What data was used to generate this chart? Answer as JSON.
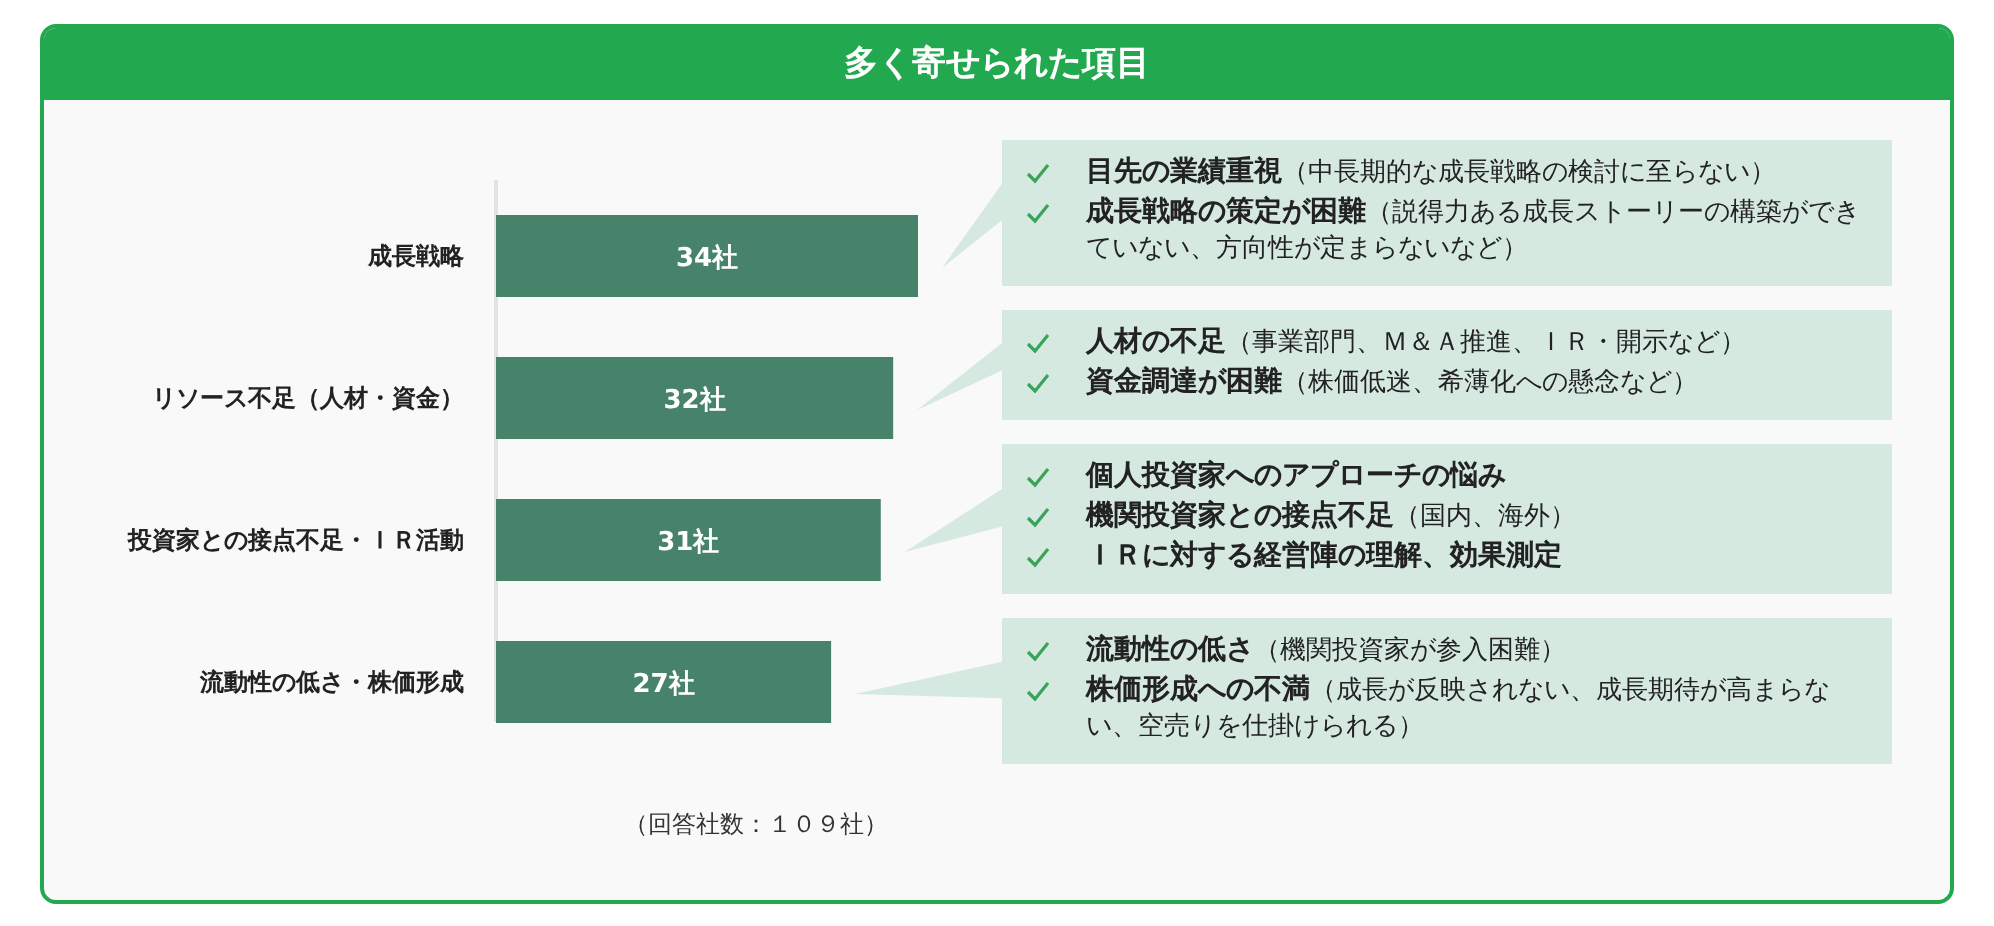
{
  "chart_data": {
    "type": "bar",
    "orientation": "horizontal",
    "title": "多く寄せられた項目",
    "categories": [
      "成長戦略",
      "リソース不足（人材・資金）",
      "投資家との接点不足・ＩＲ活動",
      "流動性の低さ・株価形成"
    ],
    "values": [
      34,
      32,
      31,
      27
    ],
    "value_labels": [
      "34社",
      "32社",
      "31社",
      "27社"
    ],
    "color": "#47826a",
    "tick_labels": "y",
    "annotations": [
      "目先の業績重視（中長期的な成長戦略の検討に至らない）",
      "成長戦略の策定が困難（説得力ある成長ストーリーの構築ができていない、方向性が定まらないなど）",
      "人材の不足（事業部門、Ｍ＆Ａ推進、ＩＲ・開示など）",
      "資金調達が困難（株価低迷、希薄化への懸念など）",
      "個人投資家へのアプローチの悩み",
      "機関投資家との接点不足（国内、海外）",
      "ＩＲに対する経営陣の理解、効果測定",
      "流動性の低さ（機関投資家が参入困難）",
      "株価形成への不満（成長が反映されない、成長期待が高まらない、空売りを仕掛けられる）",
      "（回答社数：１０９社）"
    ]
  }
}
